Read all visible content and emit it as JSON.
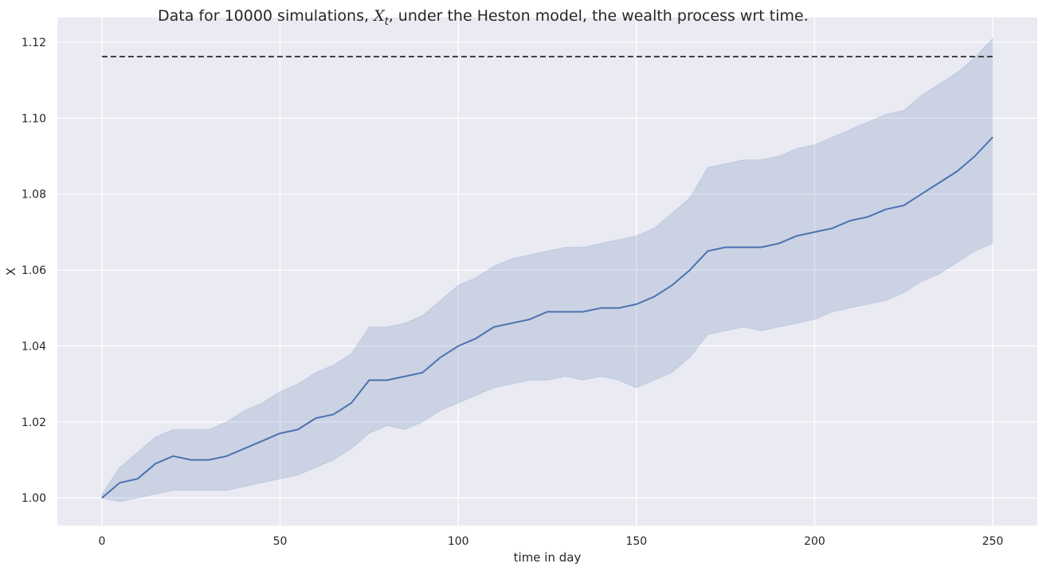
{
  "chart_data": {
    "type": "line",
    "title": {
      "prefix": "Data for 10000 simulations, ",
      "symbol": "X",
      "subscript": "t",
      "suffix": ", under the Heston model, the wealth process wrt time."
    },
    "xlabel": "time in day",
    "ylabel": "X",
    "xlim": [
      -12.5,
      262.5
    ],
    "ylim": [
      0.9927,
      1.1265
    ],
    "xticks": [
      0,
      50,
      100,
      150,
      200,
      250
    ],
    "yticks": [
      1.0,
      1.02,
      1.04,
      1.06,
      1.08,
      1.1,
      1.12
    ],
    "xtick_labels": [
      "0",
      "50",
      "100",
      "150",
      "200",
      "250"
    ],
    "ytick_labels": [
      "1.00",
      "1.02",
      "1.04",
      "1.06",
      "1.08",
      "1.10",
      "1.12"
    ],
    "grid": true,
    "colors": {
      "background": "#eaeaf2",
      "grid": "#ffffff",
      "mean_line": "#4c72b0",
      "band_fill": "#4c72b0",
      "reference_line": "#262626"
    },
    "reference_line": {
      "y": 1.1162,
      "x_start": 0,
      "x_end": 250,
      "style": "dashed"
    },
    "series": [
      {
        "role": "mean",
        "x": [
          0,
          5,
          10,
          15,
          20,
          25,
          30,
          35,
          40,
          45,
          50,
          55,
          60,
          65,
          70,
          75,
          80,
          85,
          90,
          95,
          100,
          105,
          110,
          115,
          120,
          125,
          130,
          135,
          140,
          145,
          150,
          155,
          160,
          165,
          170,
          175,
          180,
          185,
          190,
          195,
          200,
          205,
          210,
          215,
          220,
          225,
          230,
          235,
          240,
          245,
          250
        ],
        "values": [
          1.0,
          1.004,
          1.005,
          1.009,
          1.011,
          1.01,
          1.01,
          1.011,
          1.013,
          1.015,
          1.017,
          1.018,
          1.021,
          1.022,
          1.025,
          1.031,
          1.031,
          1.032,
          1.033,
          1.037,
          1.04,
          1.042,
          1.045,
          1.046,
          1.047,
          1.049,
          1.049,
          1.049,
          1.05,
          1.05,
          1.051,
          1.053,
          1.056,
          1.06,
          1.065,
          1.066,
          1.066,
          1.066,
          1.067,
          1.069,
          1.07,
          1.071,
          1.073,
          1.074,
          1.076,
          1.077,
          1.08,
          1.083,
          1.086,
          1.09,
          1.095
        ]
      },
      {
        "role": "band",
        "x": [
          0,
          5,
          10,
          15,
          20,
          25,
          30,
          35,
          40,
          45,
          50,
          55,
          60,
          65,
          70,
          75,
          80,
          85,
          90,
          95,
          100,
          105,
          110,
          115,
          120,
          125,
          130,
          135,
          140,
          145,
          150,
          155,
          160,
          165,
          170,
          175,
          180,
          185,
          190,
          195,
          200,
          205,
          210,
          215,
          220,
          225,
          230,
          235,
          240,
          245,
          250
        ],
        "lower": [
          1.0,
          0.999,
          1.0,
          1.001,
          1.002,
          1.002,
          1.002,
          1.002,
          1.003,
          1.004,
          1.005,
          1.006,
          1.008,
          1.01,
          1.013,
          1.017,
          1.019,
          1.018,
          1.02,
          1.023,
          1.025,
          1.027,
          1.029,
          1.03,
          1.031,
          1.031,
          1.032,
          1.031,
          1.032,
          1.031,
          1.029,
          1.031,
          1.033,
          1.037,
          1.043,
          1.044,
          1.045,
          1.044,
          1.045,
          1.046,
          1.047,
          1.049,
          1.05,
          1.051,
          1.052,
          1.054,
          1.057,
          1.059,
          1.062,
          1.065,
          1.067
        ],
        "upper": [
          1.001,
          1.008,
          1.012,
          1.016,
          1.018,
          1.018,
          1.018,
          1.02,
          1.023,
          1.025,
          1.028,
          1.03,
          1.033,
          1.035,
          1.038,
          1.045,
          1.045,
          1.046,
          1.048,
          1.052,
          1.056,
          1.058,
          1.061,
          1.063,
          1.064,
          1.065,
          1.066,
          1.066,
          1.067,
          1.068,
          1.069,
          1.071,
          1.075,
          1.079,
          1.087,
          1.088,
          1.089,
          1.089,
          1.09,
          1.092,
          1.093,
          1.095,
          1.097,
          1.099,
          1.101,
          1.102,
          1.106,
          1.109,
          1.112,
          1.116,
          1.121
        ]
      }
    ]
  }
}
